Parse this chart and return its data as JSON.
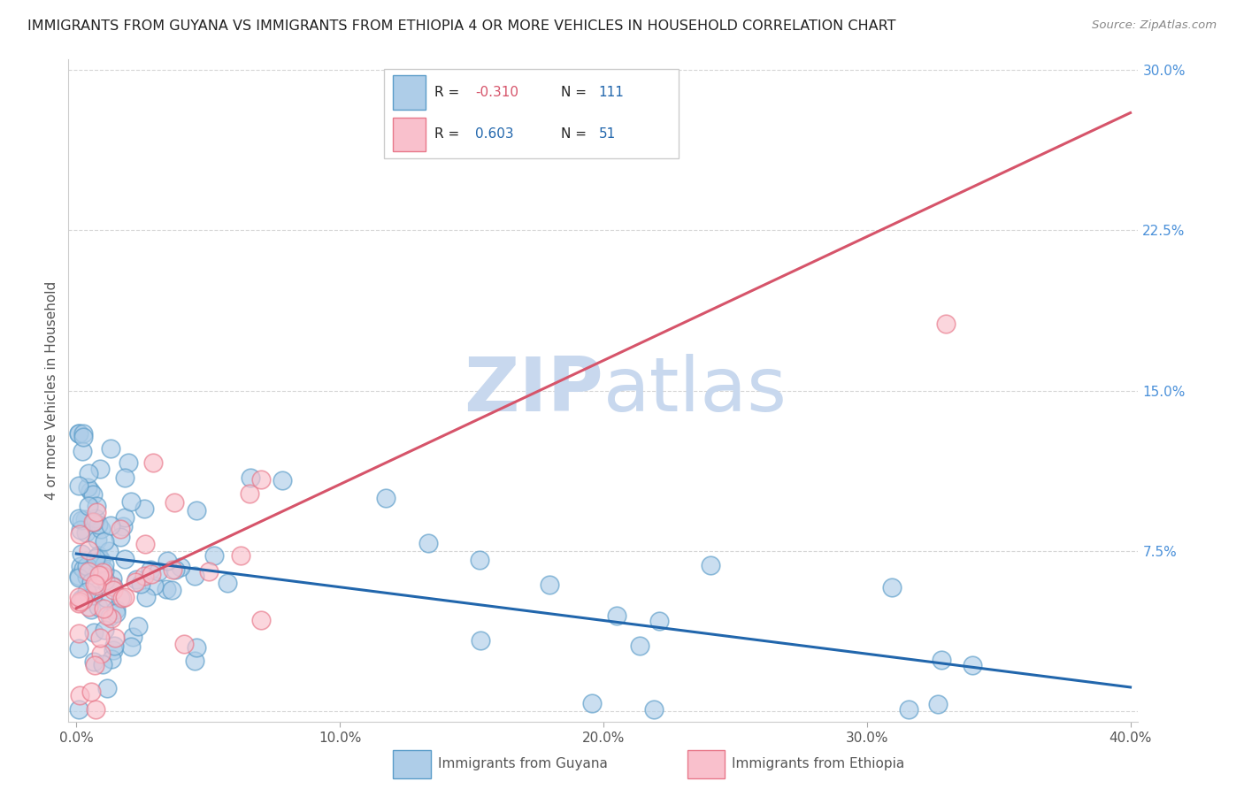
{
  "title": "IMMIGRANTS FROM GUYANA VS IMMIGRANTS FROM ETHIOPIA 4 OR MORE VEHICLES IN HOUSEHOLD CORRELATION CHART",
  "source": "Source: ZipAtlas.com",
  "ylabel": "4 or more Vehicles in Household",
  "xlabel_guyana": "Immigrants from Guyana",
  "xlabel_ethiopia": "Immigrants from Ethiopia",
  "r_guyana": -0.31,
  "n_guyana": 111,
  "r_ethiopia": 0.603,
  "n_ethiopia": 51,
  "color_guyana_fill": "#aecde8",
  "color_guyana_edge": "#5b9dc9",
  "color_ethiopia_fill": "#f9c0cc",
  "color_ethiopia_edge": "#e8788a",
  "line_color_guyana": "#2166ac",
  "line_color_ethiopia": "#d6546a",
  "background_color": "#ffffff",
  "grid_color": "#cccccc",
  "title_color": "#222222",
  "ytick_color": "#4a90d9",
  "xtick_color": "#555555",
  "watermark_zip_color": "#c8d8ee",
  "watermark_atlas_color": "#c8d8ee",
  "legend_r_color": "#222222",
  "legend_val_blue": "#2166ac",
  "legend_val_red": "#d6546a",
  "bottom_label_color": "#555555"
}
